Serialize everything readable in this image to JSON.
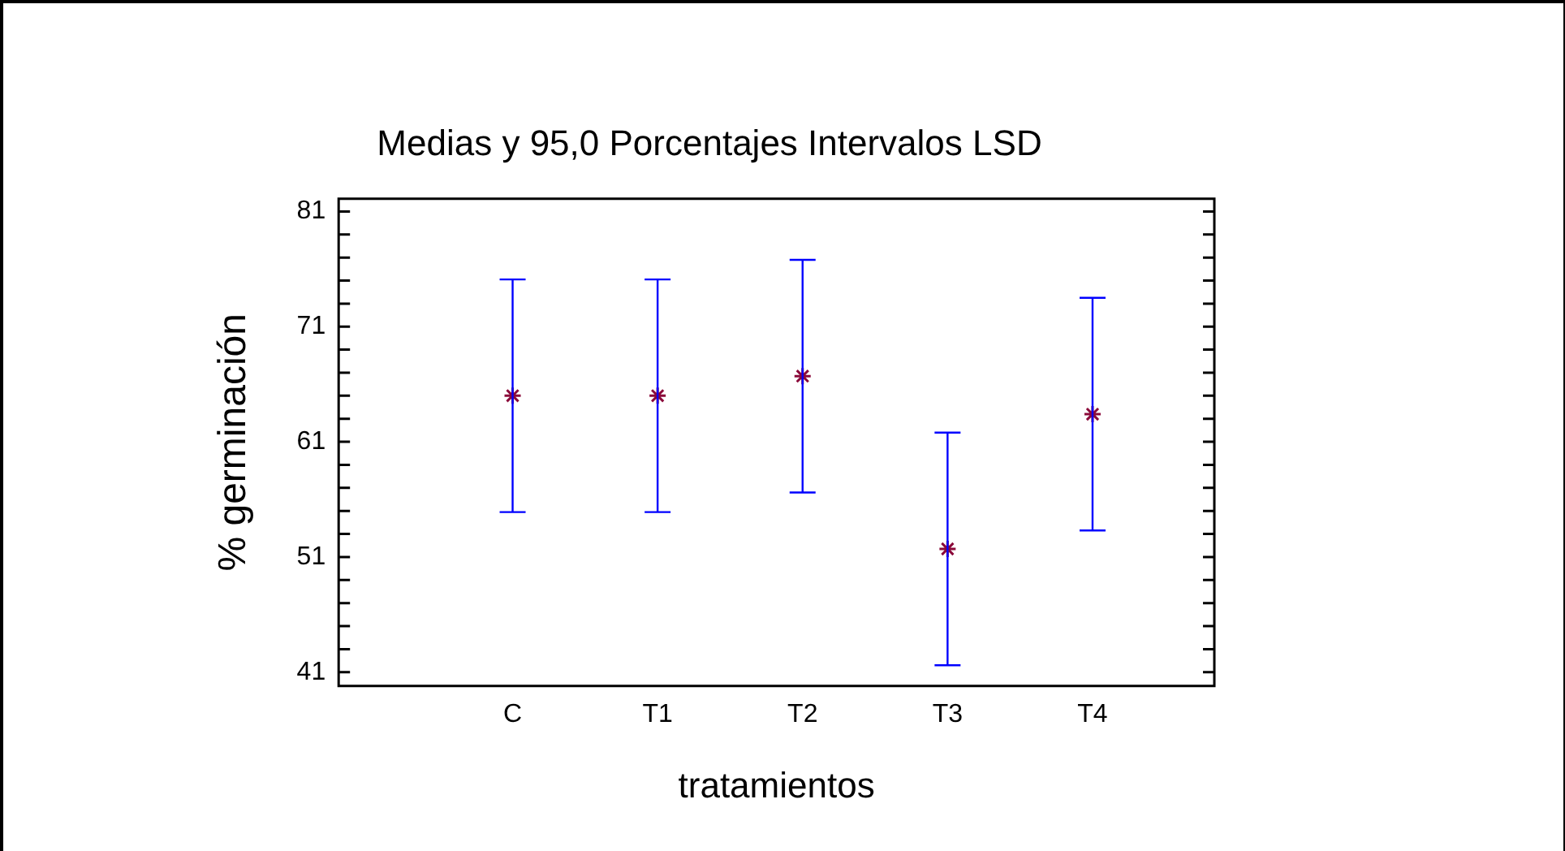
{
  "chart_data": {
    "type": "scatter",
    "title": "Medias y 95,0 Porcentajes Intervalos LSD",
    "xlabel": "tratamientos",
    "ylabel": "% germinación",
    "categories": [
      "C",
      "T1",
      "T2",
      "T3",
      "T4"
    ],
    "series": [
      {
        "color": "#8b0a3a",
        "values": [
          65.0,
          65.0,
          66.7,
          51.7,
          63.4
        ],
        "errors": [
          10.1,
          10.1,
          10.1,
          10.1,
          10.1
        ]
      }
    ],
    "marker": "cross",
    "ylim": [
      39.8,
      82.1
    ],
    "yticks": [
      41,
      {
        "value": 43,
        "label": null
      },
      {
        "value": 45,
        "label": null
      },
      {
        "value": 47,
        "label": null
      },
      {
        "value": 49,
        "label": null
      },
      51,
      {
        "value": 53,
        "label": null
      },
      {
        "value": 55,
        "label": null
      },
      {
        "value": 57,
        "label": null
      },
      {
        "value": 59,
        "label": null
      },
      61,
      {
        "value": 63,
        "label": null
      },
      {
        "value": 65,
        "label": null
      },
      {
        "value": 67,
        "label": null
      },
      {
        "value": 69,
        "label": null
      },
      71,
      {
        "value": 73,
        "label": null
      },
      {
        "value": 75,
        "label": null
      },
      {
        "value": 77,
        "label": null
      },
      {
        "value": 79,
        "label": null
      },
      81
    ],
    "grid": false,
    "legend": false
  }
}
